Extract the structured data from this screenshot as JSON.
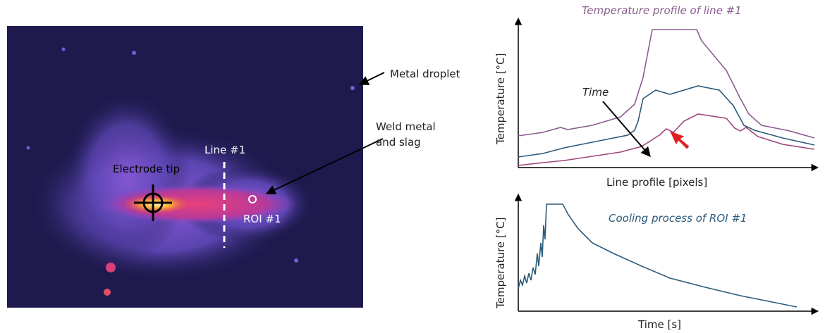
{
  "image_annotations": {
    "metal_droplet": "Metal droplet",
    "weld_metal": [
      "Weld metal",
      "and slag"
    ],
    "line": "Line #1",
    "electrode_tip": "Electrode tip",
    "roi": "ROI #1"
  },
  "profile_chart": {
    "title": "Temperature profile of line #1",
    "arrow_label": "Time",
    "y_label": "Temperature [°C]",
    "x_label": "Line profile [pixels]"
  },
  "cooling_chart": {
    "title": "Cooling process of ROI #1",
    "y_label": "Temperature [°C]",
    "x_label": "Time [s]"
  }
}
